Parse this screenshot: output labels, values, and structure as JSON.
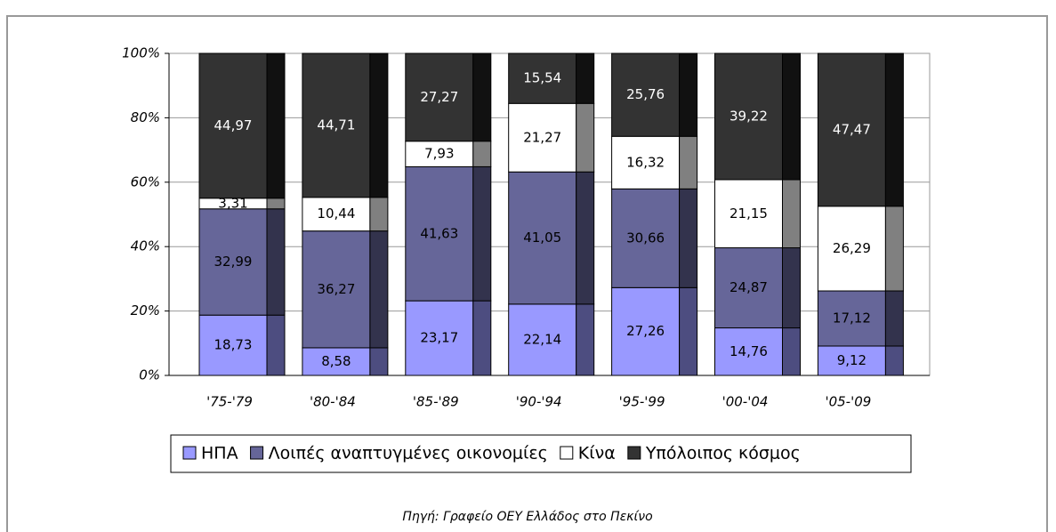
{
  "chart_data": {
    "type": "stacked_bar",
    "source": "Πηγή: Γραφείο ΟΕΥ Ελλάδος στο Πεκίνο",
    "categories": [
      "'75-'79",
      "'80-'84",
      "'85-'89",
      "'90-'94",
      "'95-'99",
      "'00-'04",
      "'05-'09"
    ],
    "series": [
      {
        "name": "ΗΠΑ",
        "color": "#9999ff",
        "side_color": "#4d4d80",
        "label_color": "#000000",
        "values": [
          18.73,
          8.58,
          23.17,
          22.14,
          27.26,
          14.76,
          9.12
        ],
        "value_labels": [
          "18,73",
          "8,58",
          "23,17",
          "22,14",
          "27,26",
          "14,76",
          "9,12"
        ]
      },
      {
        "name": "Λοιπές αναπτυγμένες οικονομίες",
        "color": "#666699",
        "side_color": "#33334d",
        "label_color": "#000000",
        "values": [
          32.99,
          36.27,
          41.63,
          41.05,
          30.66,
          24.87,
          17.12
        ],
        "value_labels": [
          "32,99",
          "36,27",
          "41,63",
          "41,05",
          "30,66",
          "24,87",
          "17,12"
        ]
      },
      {
        "name": "Κίνα",
        "color": "#ffffff",
        "side_color": "#808080",
        "label_color": "#000000",
        "values": [
          3.31,
          10.44,
          7.93,
          21.27,
          16.32,
          21.15,
          26.29
        ],
        "value_labels": [
          "3,31",
          "10,44",
          "7,93",
          "21,27",
          "16,32",
          "21,15",
          "26,29"
        ]
      },
      {
        "name": "Υπόλοιπος κόσμος",
        "color": "#333333",
        "side_color": "#111111",
        "label_color": "#ffffff",
        "values": [
          44.97,
          44.71,
          27.27,
          15.54,
          25.76,
          39.22,
          47.47
        ],
        "value_labels": [
          "44,97",
          "44,71",
          "27,27",
          "15,54",
          "25,76",
          "39,22",
          "47,47"
        ]
      }
    ],
    "ylim": [
      0,
      100
    ],
    "yticks": [
      {
        "value": 0,
        "label": "0%"
      },
      {
        "value": 20,
        "label": "20%"
      },
      {
        "value": 40,
        "label": "40%"
      },
      {
        "value": 60,
        "label": "60%"
      },
      {
        "value": 80,
        "label": "80%"
      },
      {
        "value": 100,
        "label": "100%"
      }
    ],
    "grid": true
  }
}
